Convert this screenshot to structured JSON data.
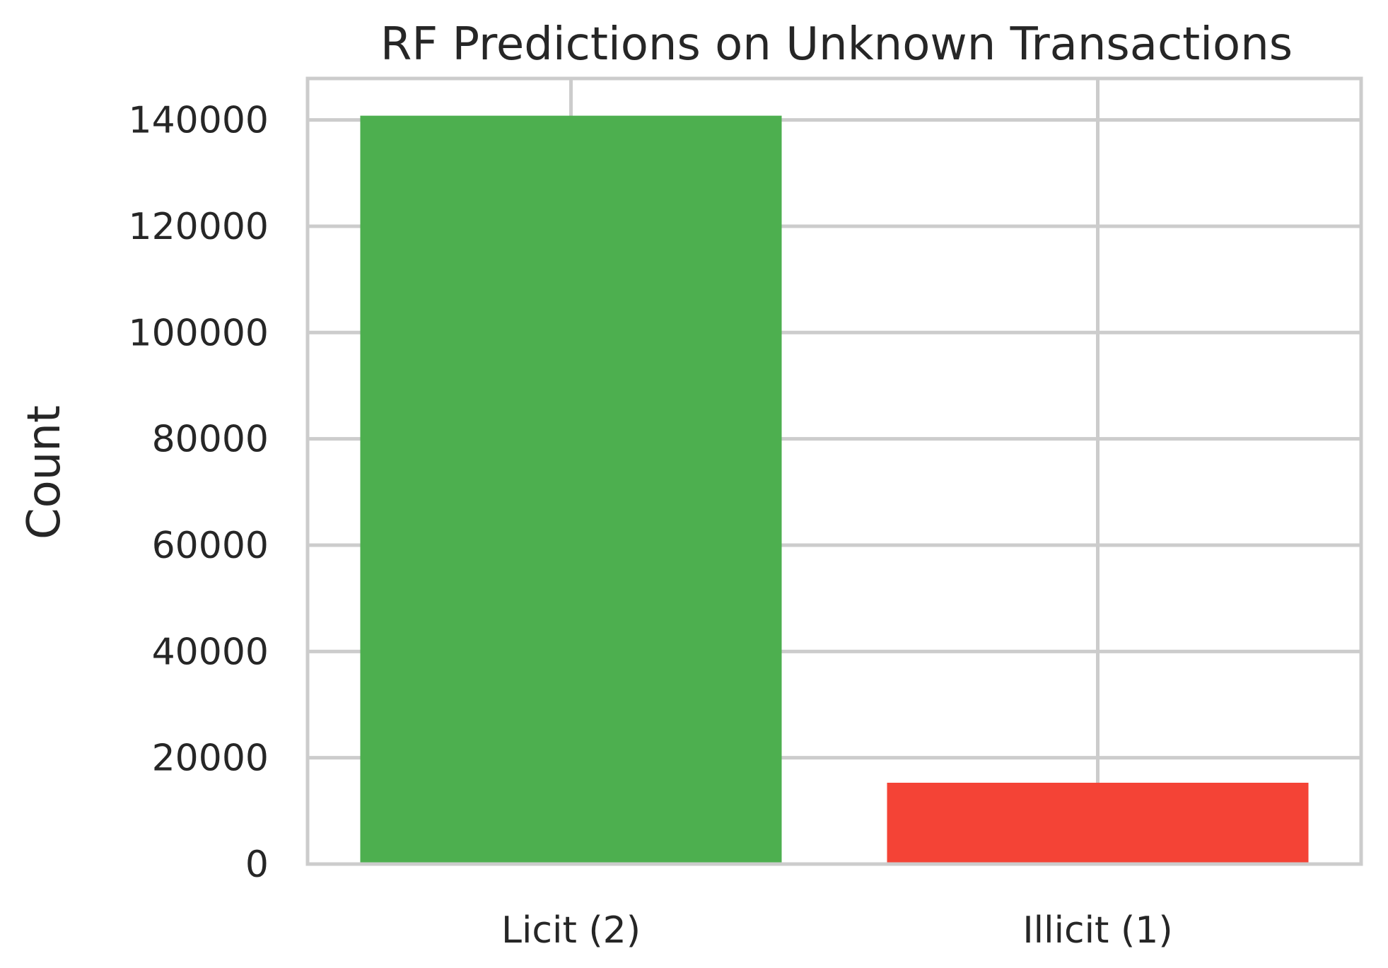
{
  "chart_data": {
    "type": "bar",
    "title": "RF Predictions on Unknown Transactions",
    "xlabel": "",
    "ylabel": "Count",
    "categories": [
      "Licit (2)",
      "Illicit (1)"
    ],
    "values": [
      140800,
      15300
    ],
    "colors": [
      "#4daf4f",
      "#f44336"
    ],
    "ylim": [
      0,
      147800
    ],
    "yticks": [
      0,
      20000,
      40000,
      60000,
      80000,
      100000,
      120000,
      140000
    ],
    "ytick_labels": [
      "0",
      "20000",
      "40000",
      "60000",
      "80000",
      "100000",
      "120000",
      "140000"
    ],
    "grid": true,
    "grid_color": "#cccccc",
    "text_color": "#262626",
    "background": "#ffffff"
  }
}
